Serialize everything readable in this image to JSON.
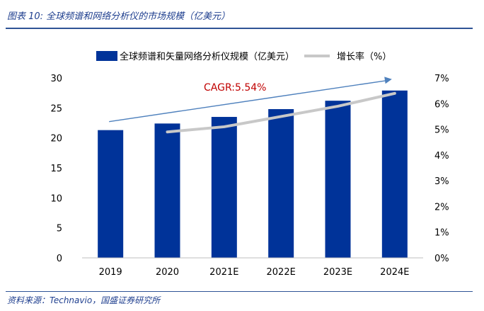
{
  "figure": {
    "title": "图表 10:  全球频谱和网络分析仪的市场规模（亿美元）",
    "source": "资料来源：Technavio，国盛证券研究所"
  },
  "colors": {
    "bar": "#003399",
    "growth_line": "#c8c8c8",
    "cagr_arrow": "#4f81bd",
    "cagr_text": "#c00000",
    "frame_rule": "#2f5496"
  },
  "chart_data": {
    "type": "bar",
    "categories": [
      "2019",
      "2020",
      "2021E",
      "2022E",
      "2023E",
      "2024E"
    ],
    "series": [
      {
        "name": "全球频谱和矢量网络分析仪规模（亿美元）",
        "type": "bar",
        "axis": "left",
        "values": [
          21.3,
          22.4,
          23.5,
          24.8,
          26.2,
          27.9
        ]
      },
      {
        "name": "增长率（%）",
        "type": "line",
        "axis": "right",
        "values": [
          null,
          4.9,
          5.1,
          5.5,
          5.9,
          6.4
        ]
      }
    ],
    "y_left": {
      "lim": [
        0,
        30
      ],
      "ticks": [
        0,
        5,
        10,
        15,
        20,
        25,
        30
      ]
    },
    "y_right": {
      "lim": [
        0,
        7
      ],
      "ticks": [
        "0%",
        "1%",
        "2%",
        "3%",
        "4%",
        "5%",
        "6%",
        "7%"
      ]
    },
    "annotation": "CAGR:5.54%",
    "legend_position": "top",
    "grid": false
  }
}
